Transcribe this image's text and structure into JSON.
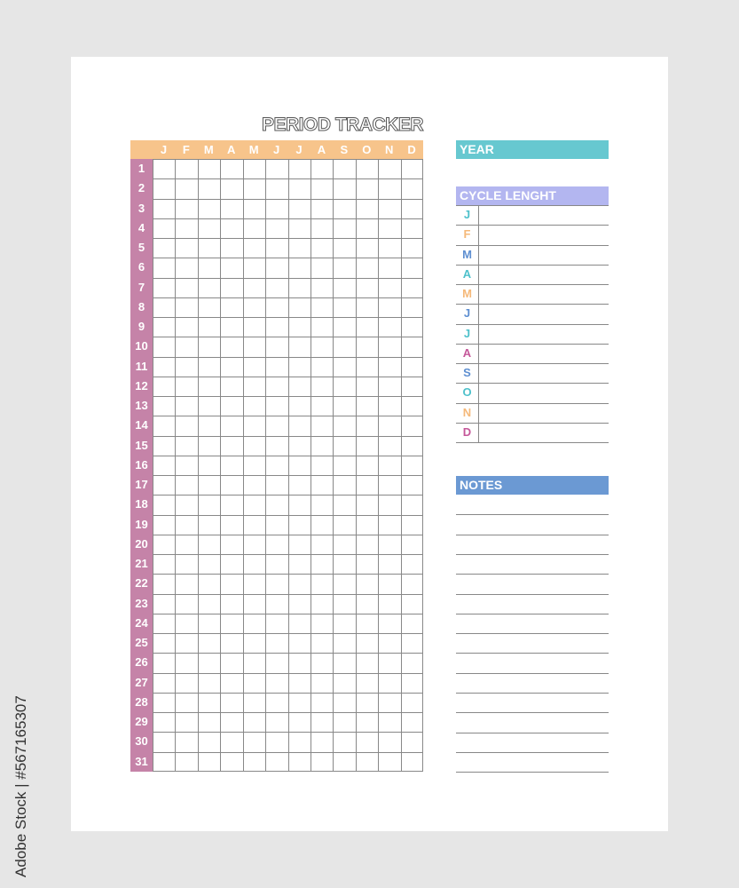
{
  "title": "PERIOD TRACKER",
  "months": [
    "J",
    "F",
    "M",
    "A",
    "M",
    "J",
    "J",
    "A",
    "S",
    "O",
    "N",
    "D"
  ],
  "days": [
    "1",
    "2",
    "3",
    "4",
    "5",
    "6",
    "7",
    "8",
    "9",
    "10",
    "11",
    "12",
    "13",
    "14",
    "15",
    "16",
    "17",
    "18",
    "19",
    "20",
    "21",
    "22",
    "23",
    "24",
    "25",
    "26",
    "27",
    "28",
    "29",
    "30",
    "31"
  ],
  "year": {
    "label": "YEAR",
    "color": "#67c8d0"
  },
  "cycle": {
    "label": "CYCLE LENGHT",
    "color": "#b3b6f0",
    "months": [
      {
        "l": "J",
        "c": "#4fc1cb"
      },
      {
        "l": "F",
        "c": "#f5b97a"
      },
      {
        "l": "M",
        "c": "#5e8fd1"
      },
      {
        "l": "A",
        "c": "#4fc1cb"
      },
      {
        "l": "M",
        "c": "#f5b97a"
      },
      {
        "l": "J",
        "c": "#5e8fd1"
      },
      {
        "l": "J",
        "c": "#4fc1cb"
      },
      {
        "l": "A",
        "c": "#c5589a"
      },
      {
        "l": "S",
        "c": "#5e8fd1"
      },
      {
        "l": "O",
        "c": "#4fc1cb"
      },
      {
        "l": "N",
        "c": "#f5b97a"
      },
      {
        "l": "D",
        "c": "#c5589a"
      }
    ]
  },
  "notes": {
    "label": "NOTES",
    "color": "#6b99d3"
  },
  "colors": {
    "header": "#f7c48b",
    "days": "#c583a8"
  },
  "watermark": "Adobe Stock | #567165307"
}
